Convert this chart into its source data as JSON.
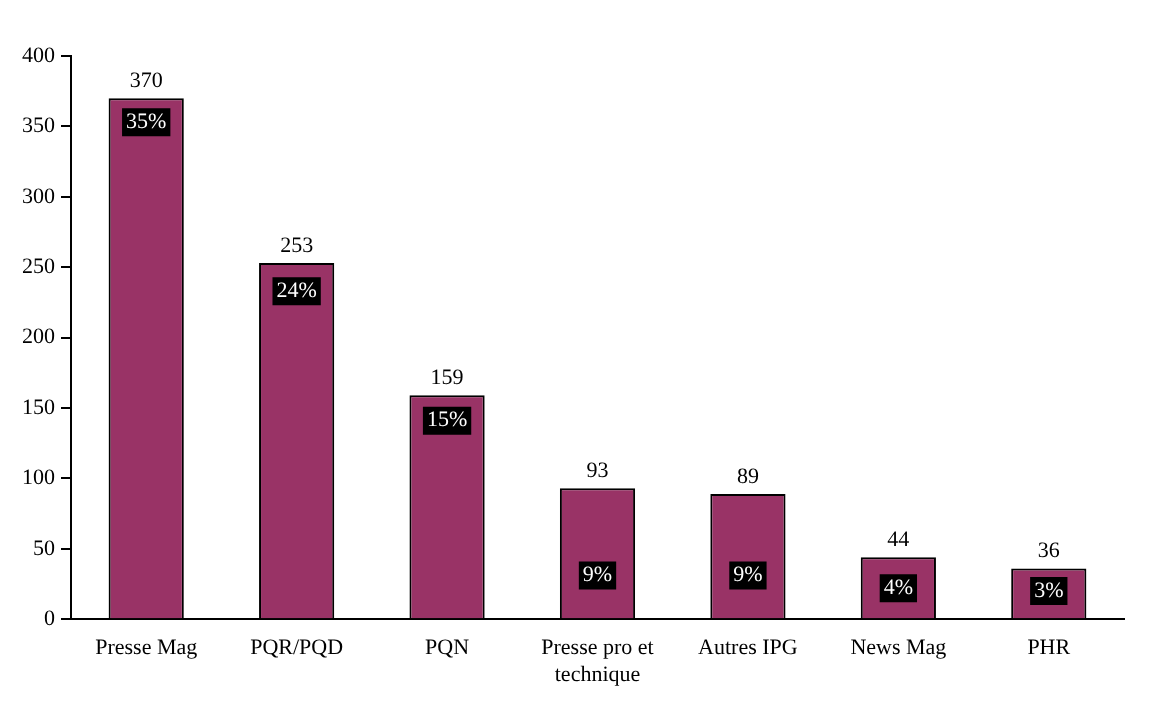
{
  "chart_data": {
    "type": "bar",
    "categories": [
      "Presse Mag",
      "PQR/PQD",
      "PQN",
      "Presse pro et technique",
      "Autres IPG",
      "News Mag",
      "PHR"
    ],
    "values": [
      370,
      253,
      159,
      93,
      89,
      44,
      36
    ],
    "color": "#993366",
    "ylim": [
      0,
      400
    ],
    "yticks": [
      0,
      50,
      100,
      150,
      200,
      250,
      300,
      350,
      400
    ],
    "grid": false,
    "data_labels": true,
    "legend": false,
    "annotations": [
      {
        "text": "35%",
        "x": "Presse Mag",
        "y": 353
      },
      {
        "text": "24%",
        "x": "PQR/PQD",
        "y": 233
      },
      {
        "text": "15%",
        "x": "PQN",
        "y": 141
      },
      {
        "text": "9%",
        "x": "Presse pro et technique",
        "y": 31
      },
      {
        "text": "9%",
        "x": "Autres IPG",
        "y": 31
      },
      {
        "text": "4%",
        "x": "News Mag",
        "y": 22
      },
      {
        "text": "3%",
        "x": "PHR",
        "y": 20
      }
    ]
  }
}
